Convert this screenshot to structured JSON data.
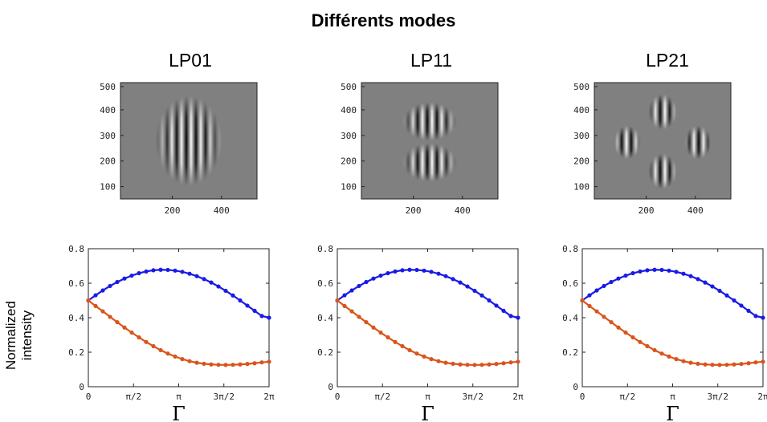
{
  "title": "Différents modes",
  "ylabel": "Normalized\nintensity",
  "colors": {
    "blue": "#1a1ae6",
    "orange": "#d9541a",
    "image_bg": "#808080"
  },
  "chart_data": [
    {
      "type": "heatmap",
      "title": "LP01",
      "mode": "LP01",
      "xticks": [
        "200",
        "400"
      ],
      "yticks": [
        "500",
        "400",
        "300",
        "200",
        "100"
      ],
      "xlim": [
        0,
        512
      ],
      "ylim": [
        0,
        512
      ]
    },
    {
      "type": "heatmap",
      "title": "LP11",
      "mode": "LP11",
      "xticks": [
        "200",
        "400"
      ],
      "yticks": [
        "500",
        "400",
        "300",
        "200",
        "100"
      ],
      "xlim": [
        0,
        512
      ],
      "ylim": [
        0,
        512
      ]
    },
    {
      "type": "heatmap",
      "title": "LP21",
      "mode": "LP21",
      "xticks": [
        "200",
        "400"
      ],
      "yticks": [
        "500",
        "400",
        "300",
        "200",
        "100"
      ],
      "xlim": [
        0,
        512
      ],
      "ylim": [
        0,
        512
      ]
    },
    {
      "type": "line",
      "xlabel": "Γ",
      "ylabel": "Normalized intensity",
      "ylim": [
        0,
        0.8
      ],
      "yticks": [
        "0",
        "0.2",
        "0.4",
        "0.6",
        "0.8"
      ],
      "xticks": [
        "0",
        "π/2",
        "π",
        "3π/2",
        "2π"
      ],
      "x_range": [
        0,
        6.2832
      ],
      "series": [
        {
          "color": "#1a1ae6",
          "values": [
            0.5,
            0.53,
            0.558,
            0.584,
            0.607,
            0.627,
            0.644,
            0.658,
            0.668,
            0.675,
            0.678,
            0.677,
            0.673,
            0.666,
            0.655,
            0.641,
            0.624,
            0.604,
            0.581,
            0.556,
            0.529,
            0.5,
            0.47,
            0.44,
            0.41,
            0.4
          ]
        },
        {
          "color": "#d9541a",
          "values": [
            0.5,
            0.468,
            0.437,
            0.405,
            0.374,
            0.343,
            0.314,
            0.286,
            0.259,
            0.235,
            0.212,
            0.192,
            0.175,
            0.16,
            0.148,
            0.139,
            0.133,
            0.129,
            0.127,
            0.126,
            0.127,
            0.129,
            0.132,
            0.136,
            0.141,
            0.145
          ]
        }
      ]
    },
    {
      "type": "line",
      "xlabel": "Γ",
      "ylabel": "",
      "ylim": [
        0,
        0.8
      ],
      "yticks": [
        "0",
        "0.2",
        "0.4",
        "0.6",
        "0.8"
      ],
      "xticks": [
        "0",
        "π/2",
        "π",
        "3π/2",
        "2π"
      ],
      "x_range": [
        0,
        6.2832
      ],
      "series": [
        {
          "color": "#1a1ae6",
          "values": [
            0.5,
            0.53,
            0.558,
            0.584,
            0.607,
            0.627,
            0.644,
            0.658,
            0.668,
            0.675,
            0.678,
            0.677,
            0.673,
            0.666,
            0.655,
            0.641,
            0.624,
            0.604,
            0.581,
            0.556,
            0.529,
            0.5,
            0.47,
            0.44,
            0.41,
            0.4
          ]
        },
        {
          "color": "#d9541a",
          "values": [
            0.5,
            0.468,
            0.437,
            0.405,
            0.374,
            0.343,
            0.314,
            0.286,
            0.259,
            0.235,
            0.212,
            0.192,
            0.175,
            0.16,
            0.148,
            0.139,
            0.133,
            0.129,
            0.127,
            0.126,
            0.127,
            0.129,
            0.132,
            0.136,
            0.141,
            0.145
          ]
        }
      ]
    },
    {
      "type": "line",
      "xlabel": "Γ",
      "ylabel": "",
      "ylim": [
        0,
        0.8
      ],
      "yticks": [
        "0",
        "0.2",
        "0.4",
        "0.6",
        "0.8"
      ],
      "xticks": [
        "0",
        "π/2",
        "π",
        "3π/2",
        "2π"
      ],
      "x_range": [
        0,
        6.2832
      ],
      "series": [
        {
          "color": "#1a1ae6",
          "values": [
            0.5,
            0.53,
            0.558,
            0.584,
            0.607,
            0.627,
            0.644,
            0.658,
            0.668,
            0.675,
            0.678,
            0.677,
            0.673,
            0.666,
            0.655,
            0.641,
            0.624,
            0.604,
            0.581,
            0.556,
            0.529,
            0.5,
            0.47,
            0.44,
            0.41,
            0.4
          ]
        },
        {
          "color": "#d9541a",
          "values": [
            0.5,
            0.468,
            0.437,
            0.405,
            0.374,
            0.343,
            0.314,
            0.286,
            0.259,
            0.235,
            0.212,
            0.192,
            0.175,
            0.16,
            0.148,
            0.139,
            0.133,
            0.129,
            0.127,
            0.126,
            0.127,
            0.129,
            0.132,
            0.136,
            0.141,
            0.145
          ]
        }
      ]
    }
  ]
}
